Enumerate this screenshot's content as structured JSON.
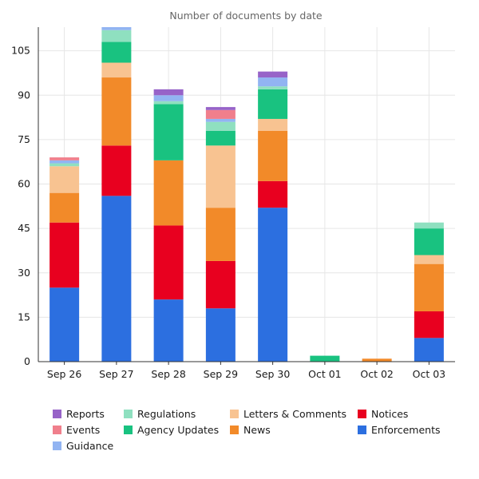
{
  "chart_data": {
    "type": "bar",
    "stacked": true,
    "title": "Number of documents by date",
    "xlabel": "",
    "ylabel": "",
    "ylim": [
      0,
      113
    ],
    "yticks": [
      0,
      15,
      30,
      45,
      60,
      75,
      90,
      105
    ],
    "grid": true,
    "legend_position": "bottom",
    "categories": [
      "Sep 26",
      "Sep 27",
      "Sep 28",
      "Sep 29",
      "Sep 30",
      "Oct 01",
      "Oct 02",
      "Oct 03"
    ],
    "series": [
      {
        "name": "Enforcements",
        "color": "#2c6fe0",
        "values": [
          25,
          56,
          21,
          18,
          52,
          0,
          0,
          8
        ]
      },
      {
        "name": "Notices",
        "color": "#e8001f",
        "values": [
          22,
          17,
          25,
          16,
          9,
          0,
          0,
          9
        ]
      },
      {
        "name": "News",
        "color": "#f28a29",
        "values": [
          10,
          23,
          22,
          18,
          17,
          0,
          1,
          16
        ]
      },
      {
        "name": "Letters & Comments",
        "color": "#f8c391",
        "values": [
          9,
          5,
          0,
          21,
          4,
          0,
          0,
          3
        ]
      },
      {
        "name": "Agency Updates",
        "color": "#19c280",
        "values": [
          0,
          7,
          19,
          5,
          10,
          2,
          0,
          9
        ]
      },
      {
        "name": "Regulations",
        "color": "#8fe0c0",
        "values": [
          1,
          4,
          1,
          3,
          1,
          0,
          0,
          2
        ]
      },
      {
        "name": "Guidance",
        "color": "#92b4f2",
        "values": [
          1,
          1,
          2,
          1,
          3,
          0,
          0,
          0
        ]
      },
      {
        "name": "Events",
        "color": "#f07f8c",
        "values": [
          1,
          0,
          0,
          3,
          0,
          0,
          0,
          0
        ]
      },
      {
        "name": "Reports",
        "color": "#9763c8",
        "values": [
          0,
          0,
          2,
          1,
          2,
          0,
          0,
          0
        ]
      }
    ],
    "legend_order": [
      "Reports",
      "Regulations",
      "Letters & Comments",
      "Notices",
      "Events",
      "Agency Updates",
      "News",
      "Enforcements",
      "Guidance"
    ]
  }
}
